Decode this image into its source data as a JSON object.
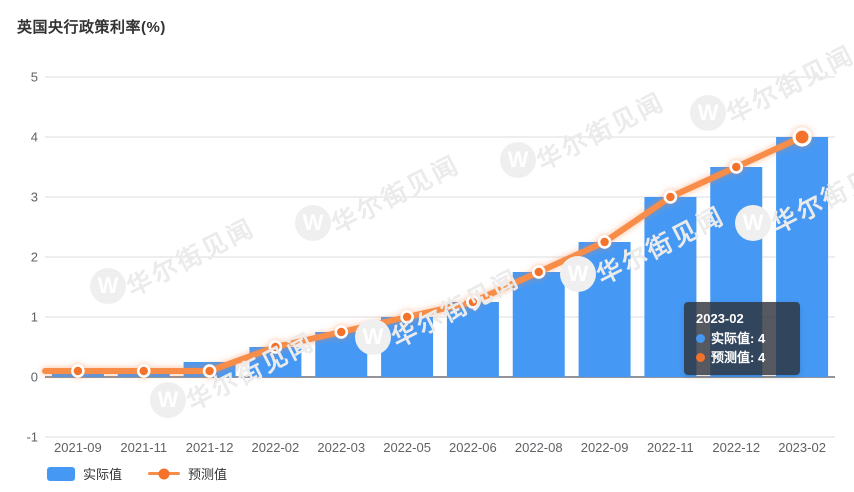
{
  "title": "英国央行政策利率(%)",
  "watermark": {
    "text": "华尔街见闻",
    "logo_letter": "W"
  },
  "legend": {
    "items": [
      {
        "label": "实际值",
        "type": "bar"
      },
      {
        "label": "预测值",
        "type": "line"
      }
    ]
  },
  "tooltip": {
    "title": "2023-02",
    "rows": [
      {
        "label": "实际值",
        "value": "4",
        "text": "实际值: 4",
        "color": "#4496F0"
      },
      {
        "label": "预测值",
        "value": "4",
        "text": "预测值: 4",
        "color": "#F4722B"
      }
    ]
  },
  "colors": {
    "bar": "#4599F5",
    "line": "#F78D4A",
    "point": "#F4722B",
    "point_ring": "#FFFFFF",
    "grid": "#DDDDDD",
    "axis": "#6E7079",
    "tick_label": "#606266",
    "title": "#333333"
  },
  "chart_data": {
    "type": "bar",
    "title": "英国央行政策利率(%)",
    "categories": [
      "2021-09",
      "2021-11",
      "2021-12",
      "2022-02",
      "2022-03",
      "2022-05",
      "2022-06",
      "2022-08",
      "2022-09",
      "2022-11",
      "2022-12",
      "2023-02"
    ],
    "series": [
      {
        "name": "实际值",
        "type": "bar",
        "color": "#4599F5",
        "values": [
          0.1,
          0.1,
          0.25,
          0.5,
          0.75,
          1,
          1.25,
          1.75,
          2.25,
          3,
          3.5,
          4
        ]
      },
      {
        "name": "预测值",
        "type": "line",
        "color": "#F78D4A",
        "point_color": "#F4722B",
        "values": [
          0.1,
          0.1,
          0.1,
          0.5,
          0.75,
          1,
          1.25,
          1.75,
          2.25,
          3,
          3.5,
          4
        ]
      }
    ],
    "xlabel": "",
    "ylabel": "",
    "ylim": [
      -1,
      5
    ],
    "yticks": [
      5,
      4,
      3,
      2,
      1,
      0,
      -1
    ],
    "grid": true,
    "legend_position": "bottom-left",
    "highlighted_category": "2023-02"
  }
}
